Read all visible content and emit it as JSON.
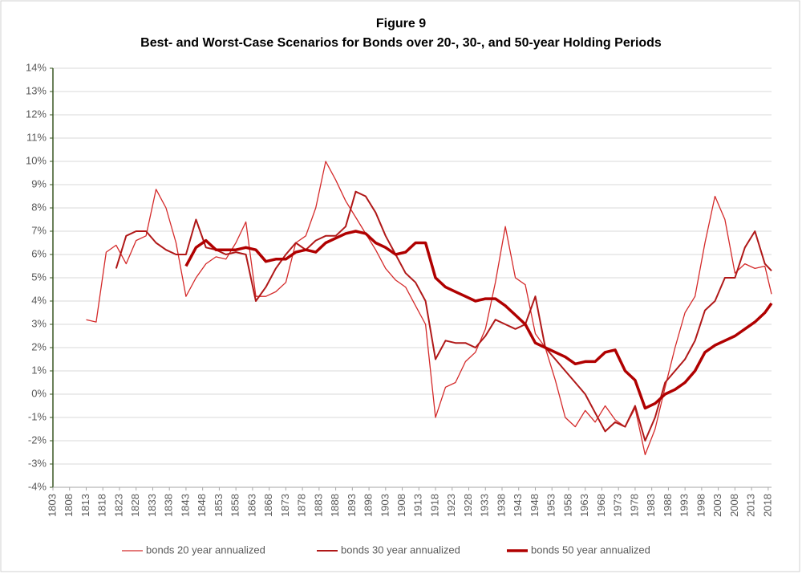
{
  "chart_data": {
    "type": "line",
    "title": "Figure 9",
    "subtitle": "Best- and Worst-Case Scenarios for Bonds over 20-, 30-, and 50-year Holding Periods",
    "x": [
      1813,
      1816,
      1819,
      1822,
      1825,
      1828,
      1831,
      1834,
      1837,
      1840,
      1843,
      1846,
      1849,
      1852,
      1855,
      1858,
      1861,
      1864,
      1867,
      1870,
      1873,
      1876,
      1879,
      1882,
      1885,
      1888,
      1891,
      1894,
      1897,
      1900,
      1903,
      1906,
      1909,
      1912,
      1915,
      1918,
      1921,
      1924,
      1927,
      1930,
      1933,
      1936,
      1939,
      1942,
      1945,
      1948,
      1951,
      1954,
      1957,
      1960,
      1963,
      1966,
      1969,
      1972,
      1975,
      1978,
      1981,
      1984,
      1987,
      1990,
      1993,
      1996,
      1999,
      2002,
      2005,
      2008,
      2011,
      2014,
      2017,
      2019
    ],
    "series": [
      {
        "name": "bonds 20 year annualized",
        "color": "#d42a2a",
        "width": 1.3,
        "values": [
          3.2,
          3.1,
          6.1,
          6.4,
          5.6,
          6.6,
          6.8,
          8.8,
          8.0,
          6.5,
          4.2,
          5.0,
          5.6,
          5.9,
          5.8,
          6.5,
          7.4,
          4.2,
          4.2,
          4.4,
          4.8,
          6.5,
          6.8,
          8.0,
          10.0,
          9.2,
          8.3,
          7.6,
          6.9,
          6.2,
          5.4,
          4.9,
          4.6,
          3.8,
          3.0,
          -1.0,
          0.3,
          0.5,
          1.4,
          1.8,
          2.8,
          4.8,
          7.2,
          5.0,
          4.7,
          2.6,
          2.0,
          0.6,
          -1.0,
          -1.4,
          -0.7,
          -1.2,
          -0.5,
          -1.1,
          -1.4,
          -0.6,
          -2.6,
          -1.5,
          0.3,
          2.0,
          3.5,
          4.2,
          6.5,
          8.5,
          7.5,
          5.2,
          5.6,
          5.4,
          5.5,
          4.3
        ]
      },
      {
        "name": "bonds 30 year annualized",
        "color": "#b01818",
        "width": 2,
        "values": [
          null,
          null,
          null,
          5.4,
          6.8,
          7.0,
          7.0,
          6.5,
          6.2,
          6.0,
          6.0,
          7.5,
          6.3,
          6.2,
          6.0,
          6.1,
          6.0,
          4.0,
          4.6,
          5.4,
          6.0,
          6.5,
          6.2,
          6.6,
          6.8,
          6.8,
          7.2,
          8.7,
          8.5,
          7.8,
          6.8,
          6.0,
          5.2,
          4.8,
          4.0,
          1.5,
          2.3,
          2.2,
          2.2,
          2.0,
          2.5,
          3.2,
          3.0,
          2.8,
          3.0,
          4.2,
          2.0,
          1.5,
          1.0,
          0.5,
          0.0,
          -0.8,
          -1.6,
          -1.2,
          -1.4,
          -0.5,
          -2.0,
          -1.0,
          0.5,
          1.0,
          1.5,
          2.3,
          3.6,
          4.0,
          5.0,
          5.0,
          6.3,
          7.0,
          5.6,
          5.3
        ]
      },
      {
        "name": "bonds 50 year annualized",
        "color": "#b00000",
        "width": 3.5,
        "values": [
          null,
          null,
          null,
          null,
          null,
          null,
          null,
          null,
          null,
          null,
          5.5,
          6.3,
          6.6,
          6.2,
          6.2,
          6.2,
          6.3,
          6.2,
          5.7,
          5.8,
          5.8,
          6.1,
          6.2,
          6.1,
          6.5,
          6.7,
          6.9,
          7.0,
          6.9,
          6.5,
          6.3,
          6.0,
          6.1,
          6.5,
          6.5,
          5.0,
          4.6,
          4.4,
          4.2,
          4.0,
          4.1,
          4.1,
          3.8,
          3.4,
          3.0,
          2.2,
          2.0,
          1.8,
          1.6,
          1.3,
          1.4,
          1.4,
          1.8,
          1.9,
          1.0,
          0.6,
          -0.6,
          -0.4,
          0.0,
          0.2,
          0.5,
          1.0,
          1.8,
          2.1,
          2.3,
          2.5,
          2.8,
          3.1,
          3.5,
          3.9
        ]
      }
    ],
    "xlim": [
      1803,
      2019
    ],
    "xticks": [
      1803,
      1808,
      1813,
      1818,
      1823,
      1828,
      1833,
      1838,
      1843,
      1848,
      1853,
      1858,
      1863,
      1868,
      1873,
      1878,
      1883,
      1888,
      1893,
      1898,
      1903,
      1908,
      1913,
      1918,
      1923,
      1928,
      1933,
      1938,
      1943,
      1948,
      1953,
      1958,
      1963,
      1968,
      1973,
      1978,
      1983,
      1988,
      1993,
      1998,
      2003,
      2008,
      2013,
      2018
    ],
    "ylim": [
      -4,
      14
    ],
    "yticks": [
      {
        "value": -4,
        "label": "-4%"
      },
      {
        "value": -3,
        "label": "-3%"
      },
      {
        "value": -2,
        "label": "-2%"
      },
      {
        "value": -1,
        "label": "-1%"
      },
      {
        "value": 0,
        "label": "0%"
      },
      {
        "value": 1,
        "label": "1%"
      },
      {
        "value": 2,
        "label": "2%"
      },
      {
        "value": 3,
        "label": "3%"
      },
      {
        "value": 4,
        "label": "4%"
      },
      {
        "value": 5,
        "label": "5%"
      },
      {
        "value": 6,
        "label": "6%"
      },
      {
        "value": 7,
        "label": "7%"
      },
      {
        "value": 8,
        "label": "8%"
      },
      {
        "value": 9,
        "label": "9%"
      },
      {
        "value": 10,
        "label": "10%"
      },
      {
        "value": 11,
        "label": "11%"
      },
      {
        "value": 12,
        "label": "12%"
      },
      {
        "value": 13,
        "label": "13%"
      },
      {
        "value": 14,
        "label": "14%"
      }
    ],
    "grid": true
  }
}
